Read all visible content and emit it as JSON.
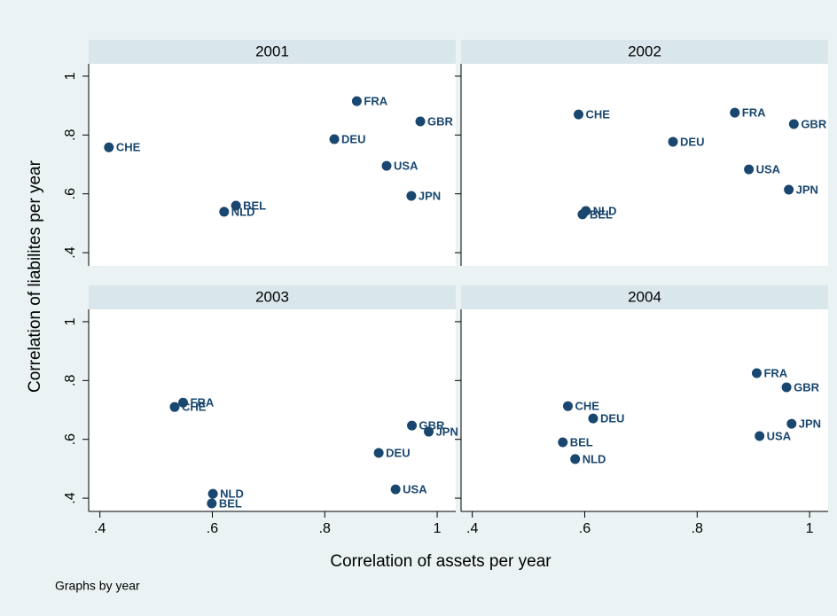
{
  "chart_data": {
    "type": "scatter",
    "xlabel": "Correlation of assets per year",
    "ylabel": "Correlation of liabilites per year",
    "note": "Graphs by year",
    "color": "#1a476f",
    "xlim": [
      0.38,
      1.033
    ],
    "ylim": [
      0.355,
      1.042
    ],
    "xticks": [
      {
        "value": 0.4,
        "label": ".4"
      },
      {
        "value": 0.6,
        "label": ".6"
      },
      {
        "value": 0.8,
        "label": ".8"
      },
      1
    ],
    "yticks": [
      {
        "value": 0.4,
        "label": ".4"
      },
      {
        "value": 0.6,
        "label": ".6"
      },
      {
        "value": 0.8,
        "label": ".8"
      },
      1
    ],
    "facets": [
      {
        "title": "2001",
        "labels": [
          "CHE",
          "BEL",
          "NLD",
          "DEU",
          "FRA",
          "USA",
          "GBR",
          "JPN"
        ],
        "x": [
          0.416,
          0.642,
          0.621,
          0.817,
          0.857,
          0.91,
          0.97,
          0.954
        ],
        "y": [
          0.758,
          0.56,
          0.539,
          0.786,
          0.915,
          0.695,
          0.846,
          0.593
        ]
      },
      {
        "title": "2002",
        "labels": [
          "CHE",
          "FRA",
          "GBR",
          "DEU",
          "USA",
          "JPN",
          "NLD",
          "BEL"
        ],
        "x": [
          0.589,
          0.867,
          0.972,
          0.757,
          0.892,
          0.963,
          0.602,
          0.596
        ],
        "y": [
          0.87,
          0.876,
          0.837,
          0.777,
          0.683,
          0.614,
          0.542,
          0.53
        ]
      },
      {
        "title": "2003",
        "labels": [
          "CHE",
          "FRA",
          "GBR",
          "JPN",
          "DEU",
          "USA",
          "NLD",
          "BEL"
        ],
        "x": [
          0.533,
          0.548,
          0.955,
          0.985,
          0.896,
          0.926,
          0.601,
          0.599
        ],
        "y": [
          0.71,
          0.725,
          0.647,
          0.626,
          0.554,
          0.43,
          0.415,
          0.382
        ]
      },
      {
        "title": "2004",
        "labels": [
          "FRA",
          "GBR",
          "JPN",
          "USA",
          "CHE",
          "DEU",
          "BEL",
          "NLD"
        ],
        "x": [
          0.906,
          0.959,
          0.968,
          0.911,
          0.57,
          0.615,
          0.561,
          0.583
        ],
        "y": [
          0.825,
          0.777,
          0.653,
          0.611,
          0.713,
          0.671,
          0.59,
          0.533
        ]
      }
    ]
  }
}
